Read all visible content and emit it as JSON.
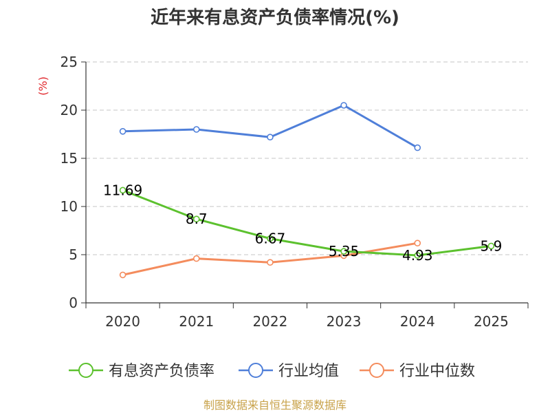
{
  "title": "近年来有息资产负债率情况(%)",
  "source": "制图数据来自恒生聚源数据库",
  "colors": {
    "source": "#c8a24a",
    "ylabel": "#e0262b",
    "axis": "#333333",
    "grid": "#c4c4c4"
  },
  "chart_data": {
    "type": "line",
    "title": "近年来有息资产负债率情况(%)",
    "ylabel": "(%)",
    "xlabel": "",
    "categories": [
      "2020",
      "2021",
      "2022",
      "2023",
      "2024",
      "2025"
    ],
    "ylim": [
      0,
      25
    ],
    "yticks": [
      0,
      5,
      10,
      15,
      20,
      25
    ],
    "grid": true,
    "legend_position": "bottom",
    "series": [
      {
        "name": "有息资产负债率",
        "color": "#5cc12e",
        "values": [
          11.69,
          8.7,
          6.67,
          5.35,
          4.93,
          5.9
        ],
        "labels": [
          "11.69",
          "8.7",
          "6.67",
          "5.35",
          "4.93",
          "5.9"
        ]
      },
      {
        "name": "行业均值",
        "color": "#4f7fd9",
        "values": [
          17.8,
          18.0,
          17.2,
          20.5,
          16.1,
          null
        ]
      },
      {
        "name": "行业中位数",
        "color": "#f48c5d",
        "values": [
          2.9,
          4.6,
          4.2,
          4.9,
          6.2,
          null
        ]
      }
    ]
  }
}
